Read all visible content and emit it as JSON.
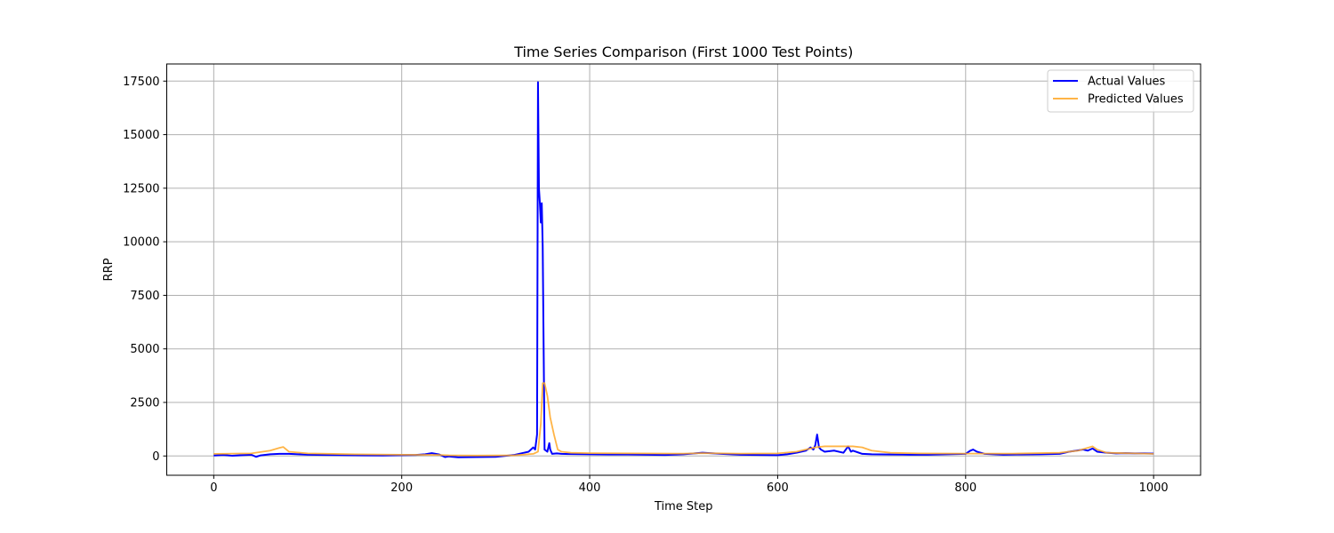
{
  "chart_data": {
    "type": "line",
    "title": "Time Series Comparison (First 1000 Test Points)",
    "xlabel": "Time Step",
    "ylabel": "RRP",
    "xlim": [
      -50,
      1050
    ],
    "ylim": [
      -900,
      18300
    ],
    "xticks": [
      0,
      200,
      400,
      600,
      800,
      1000
    ],
    "xtick_labels": [
      "0",
      "200",
      "400",
      "600",
      "800",
      "1000"
    ],
    "yticks": [
      0,
      2500,
      5000,
      7500,
      10000,
      12500,
      15000,
      17500
    ],
    "ytick_labels": [
      "0",
      "2500",
      "5000",
      "7500",
      "10000",
      "12500",
      "15000",
      "17500"
    ],
    "grid": true,
    "legend_position": "top-right",
    "series": [
      {
        "name": "Actual Values",
        "color": "#0000ff",
        "x": [
          0,
          10,
          20,
          30,
          40,
          45,
          50,
          60,
          70,
          80,
          90,
          100,
          120,
          140,
          160,
          180,
          200,
          215,
          225,
          232,
          240,
          246,
          250,
          260,
          280,
          300,
          320,
          330,
          335,
          340,
          342,
          344,
          345,
          346,
          347,
          348,
          349,
          350,
          352,
          355,
          357,
          358,
          360,
          365,
          370,
          380,
          400,
          420,
          440,
          460,
          480,
          500,
          520,
          540,
          560,
          580,
          600,
          610,
          620,
          630,
          635,
          638,
          640,
          642,
          644,
          646,
          650,
          660,
          670,
          675,
          678,
          680,
          690,
          700,
          720,
          740,
          760,
          780,
          800,
          805,
          808,
          812,
          820,
          840,
          860,
          880,
          900,
          910,
          918,
          925,
          930,
          935,
          940,
          950,
          960,
          970,
          980,
          990,
          1000
        ],
        "y": [
          20,
          50,
          10,
          40,
          60,
          -40,
          30,
          80,
          100,
          100,
          80,
          60,
          50,
          40,
          30,
          20,
          40,
          50,
          80,
          130,
          70,
          -50,
          -20,
          -60,
          -50,
          -40,
          50,
          150,
          200,
          400,
          300,
          1000,
          17450,
          12500,
          11800,
          10900,
          11800,
          9800,
          300,
          200,
          600,
          300,
          100,
          120,
          100,
          90,
          80,
          70,
          70,
          60,
          50,
          80,
          150,
          100,
          60,
          50,
          40,
          80,
          150,
          250,
          400,
          300,
          500,
          1000,
          400,
          300,
          200,
          250,
          150,
          450,
          200,
          250,
          100,
          80,
          70,
          60,
          60,
          80,
          100,
          250,
          300,
          200,
          100,
          60,
          70,
          80,
          100,
          200,
          250,
          300,
          250,
          350,
          200,
          150,
          120,
          130,
          120,
          120,
          110
        ]
      },
      {
        "name": "Predicted Values",
        "color": "#ffa726",
        "x": [
          0,
          20,
          40,
          60,
          70,
          74,
          80,
          100,
          150,
          200,
          240,
          250,
          280,
          320,
          340,
          345,
          348,
          350,
          352,
          355,
          358,
          362,
          366,
          370,
          380,
          400,
          450,
          500,
          520,
          560,
          600,
          620,
          640,
          650,
          660,
          680,
          690,
          700,
          720,
          750,
          800,
          850,
          900,
          920,
          935,
          940,
          950,
          1000
        ],
        "y": [
          100,
          110,
          120,
          250,
          380,
          420,
          200,
          120,
          80,
          60,
          50,
          30,
          20,
          30,
          100,
          200,
          1500,
          3400,
          3400,
          2800,
          1800,
          1000,
          300,
          200,
          150,
          130,
          120,
          110,
          130,
          110,
          120,
          200,
          400,
          450,
          450,
          450,
          400,
          250,
          150,
          120,
          110,
          110,
          150,
          250,
          450,
          300,
          150,
          100
        ]
      }
    ]
  }
}
